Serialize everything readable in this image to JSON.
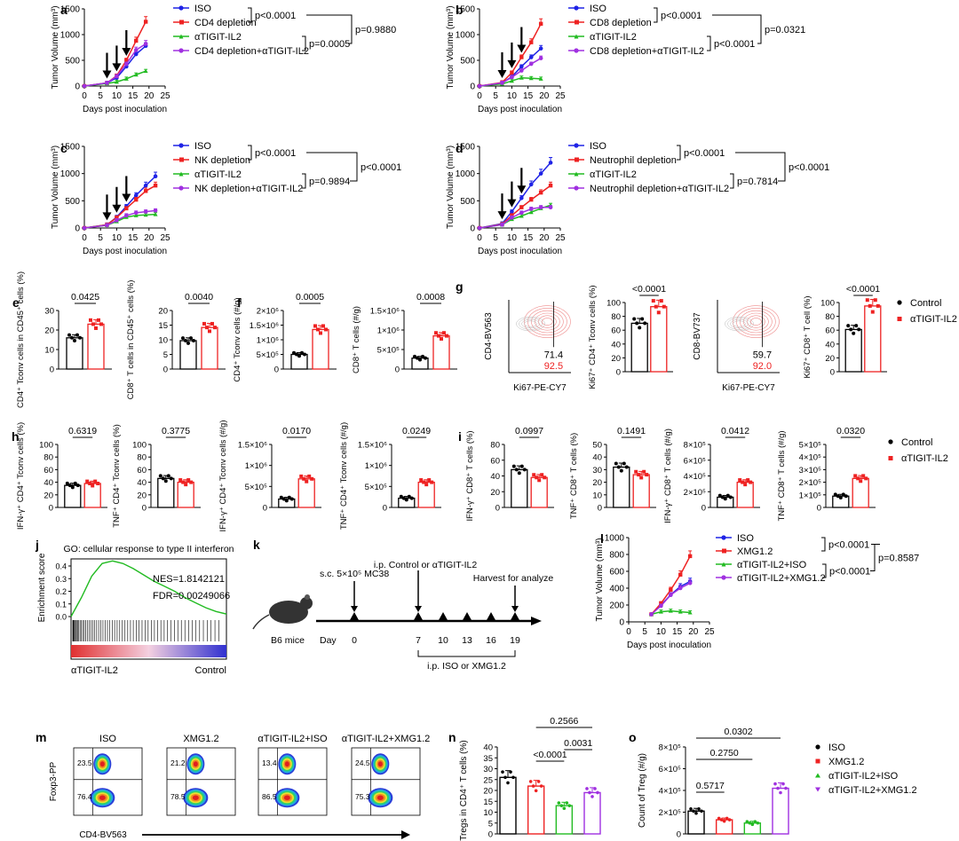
{
  "colors": {
    "ISO": "#1f23e6",
    "red": "#ee2222",
    "green": "#22bb22",
    "purple": "#a030e0",
    "black": "#000000"
  },
  "chart_data": {
    "a": {
      "label": "a",
      "type": "line",
      "ylabel": "Tumor Volume (mm³)",
      "xlabel": "Days post inoculation",
      "x": [
        0,
        7,
        10,
        13,
        16,
        19
      ],
      "xlim": [
        0,
        25
      ],
      "ylim": [
        0,
        1500
      ],
      "yticks": [
        "0",
        "500",
        "1000",
        "1500"
      ],
      "xticks": [
        "0",
        "5",
        "10",
        "15",
        "20",
        "25"
      ],
      "arrow_days": [
        7,
        10,
        13
      ],
      "series": [
        {
          "name": "ISO",
          "values": [
            0,
            60,
            160,
            380,
            620,
            780
          ]
        },
        {
          "name": "CD4 depletion",
          "values": [
            0,
            60,
            200,
            500,
            880,
            1250
          ]
        },
        {
          "name": "αTIGIT-IL2",
          "values": [
            0,
            50,
            80,
            140,
            220,
            290
          ]
        },
        {
          "name": "CD4 depletion+αTIGIT-IL2",
          "values": [
            0,
            60,
            190,
            430,
            700,
            820
          ]
        }
      ],
      "pvals": [
        "p<0.0001",
        "p=0.0005",
        "p=0.9880"
      ]
    },
    "b": {
      "label": "b",
      "type": "line",
      "ylabel": "Tumor Volume (mm³)",
      "xlabel": "Days post inoculation",
      "x": [
        0,
        7,
        10,
        13,
        16,
        19
      ],
      "xlim": [
        0,
        25
      ],
      "ylim": [
        0,
        1500
      ],
      "yticks": [
        "0",
        "500",
        "1000",
        "1500"
      ],
      "xticks": [
        "0",
        "5",
        "10",
        "15",
        "20",
        "25"
      ],
      "arrow_days": [
        7,
        10,
        13
      ],
      "series": [
        {
          "name": "ISO",
          "values": [
            0,
            60,
            180,
            380,
            560,
            730
          ]
        },
        {
          "name": "CD8 depletion",
          "values": [
            0,
            70,
            260,
            560,
            850,
            1210
          ]
        },
        {
          "name": "αTIGIT-IL2",
          "values": [
            0,
            40,
            100,
            160,
            150,
            140
          ]
        },
        {
          "name": "CD8 depletion+αTIGIT-IL2",
          "values": [
            0,
            60,
            170,
            300,
            430,
            540
          ]
        }
      ],
      "pvals": [
        "p<0.0001",
        "p<0.0001",
        "p=0.0321"
      ]
    },
    "c": {
      "label": "c",
      "type": "line",
      "ylabel": "Tumor Volume (mm³)",
      "xlabel": "Days post inoculation",
      "x": [
        0,
        7,
        10,
        13,
        16,
        19,
        22
      ],
      "xlim": [
        0,
        25
      ],
      "ylim": [
        0,
        1500
      ],
      "yticks": [
        "0",
        "500",
        "1000",
        "1500"
      ],
      "xticks": [
        "0",
        "5",
        "10",
        "15",
        "20",
        "25"
      ],
      "arrow_days": [
        7,
        10,
        13
      ],
      "series": [
        {
          "name": "ISO",
          "values": [
            0,
            60,
            200,
            400,
            600,
            780,
            950
          ]
        },
        {
          "name": "NK depletion",
          "values": [
            0,
            60,
            190,
            360,
            520,
            680,
            780
          ]
        },
        {
          "name": "αTIGIT-IL2",
          "values": [
            0,
            50,
            120,
            200,
            230,
            240,
            250
          ]
        },
        {
          "name": "NK depletion+αTIGIT-IL2",
          "values": [
            0,
            50,
            140,
            230,
            280,
            300,
            320
          ]
        }
      ],
      "pvals": [
        "p<0.0001",
        "p=0.9894",
        "p<0.0001"
      ]
    },
    "d": {
      "label": "d",
      "type": "line",
      "ylabel": "Tumor Volume (mm³)",
      "xlabel": "Days post inoculation",
      "x": [
        0,
        7,
        10,
        13,
        16,
        19,
        22
      ],
      "xlim": [
        0,
        25
      ],
      "ylim": [
        0,
        1500
      ],
      "yticks": [
        "0",
        "500",
        "1000",
        "1500"
      ],
      "xticks": [
        "0",
        "5",
        "10",
        "15",
        "20",
        "25"
      ],
      "arrow_days": [
        7,
        10,
        13
      ],
      "series": [
        {
          "name": "ISO",
          "values": [
            0,
            80,
            300,
            550,
            800,
            1000,
            1200
          ]
        },
        {
          "name": "Neutrophil depletion",
          "values": [
            0,
            70,
            230,
            380,
            520,
            650,
            780
          ]
        },
        {
          "name": "αTIGIT-IL2",
          "values": [
            0,
            60,
            160,
            220,
            290,
            360,
            420
          ]
        },
        {
          "name": "Neutrophil depletion+αTIGIT-IL2",
          "values": [
            0,
            60,
            190,
            280,
            350,
            380,
            380
          ]
        }
      ],
      "pvals": [
        "p<0.0001",
        "p=0.7814",
        "p<0.0001"
      ]
    },
    "l": {
      "label": "l",
      "type": "line",
      "ylabel": "Tumor Volume (mm³)",
      "xlabel": "Days post inoculation",
      "x": [
        7,
        10,
        13,
        16,
        19
      ],
      "xlim": [
        0,
        25
      ],
      "ylim": [
        0,
        1000
      ],
      "yticks": [
        "0",
        "200",
        "400",
        "600",
        "800",
        "1000"
      ],
      "xticks": [
        "0",
        "5",
        "10",
        "15",
        "20",
        "25"
      ],
      "series": [
        {
          "name": "ISO",
          "values": [
            90,
            200,
            320,
            420,
            480
          ]
        },
        {
          "name": "XMG1.2",
          "values": [
            90,
            220,
            380,
            560,
            780
          ]
        },
        {
          "name": "αTIGIT-IL2+ISO",
          "values": [
            90,
            120,
            130,
            120,
            110
          ]
        },
        {
          "name": "αTIGIT-IL2+XMG1.2",
          "values": [
            90,
            190,
            320,
            400,
            460
          ]
        }
      ],
      "pvals": [
        "p<0.0001",
        "p<0.0001",
        "p=0.8587"
      ]
    },
    "bars": [
      {
        "label": "e",
        "ylabel": "CD4⁺ Tconv cells in CD45⁺ cells (%)",
        "ymax": 30,
        "yticks": [
          "0",
          "10",
          "20",
          "30"
        ],
        "values": [
          16,
          23
        ],
        "p": "0.0425"
      },
      {
        "label": "",
        "ylabel": "CD8⁺ T cells in CD45⁺ cells (%)",
        "ymax": 20,
        "yticks": [
          "0",
          "5",
          "10",
          "15",
          "20"
        ],
        "values": [
          9.7,
          14.2
        ],
        "p": "0.0040"
      },
      {
        "label": "f",
        "ylabel": "CD4⁺ Tconv cells (#/g)",
        "ymax": 2000000,
        "yticks": [
          "0",
          "5×10⁵",
          "1×10⁶",
          "1.5×10⁶",
          "2×10⁶"
        ],
        "values": [
          500000,
          1350000
        ],
        "p": "0.0005"
      },
      {
        "label": "",
        "ylabel": "CD8⁺ T cells (#/g)",
        "ymax": 1500000,
        "yticks": [
          "0",
          "5×10⁵",
          "1×10⁶",
          "1.5×10⁶"
        ],
        "values": [
          280000,
          850000
        ],
        "p": "0.0008"
      },
      {
        "label": "",
        "ylabel": "Ki67⁺ CD4⁺ Tconv cells (%)",
        "ymax": 100,
        "yticks": [
          "0",
          "20",
          "40",
          "60",
          "80",
          "100"
        ],
        "values": [
          70,
          94
        ],
        "p": "<0.0001"
      },
      {
        "label": "",
        "ylabel": "Ki67⁺ CD8⁺ T cell (%)",
        "ymax": 100,
        "yticks": [
          "0",
          "20",
          "40",
          "60",
          "80",
          "100"
        ],
        "values": [
          61,
          95
        ],
        "p": "<0.0001"
      },
      {
        "label": "h",
        "ylabel": "IFN-γ⁺ CD4⁺ Tconv cells (%)",
        "ymax": 100,
        "yticks": [
          "0",
          "20",
          "40",
          "60",
          "80",
          "100"
        ],
        "values": [
          35,
          38
        ],
        "p": "0.6319"
      },
      {
        "label": "",
        "ylabel": "TNF⁺ CD4⁺ Tconv cells (%)",
        "ymax": 100,
        "yticks": [
          "0",
          "20",
          "40",
          "60",
          "80",
          "100"
        ],
        "values": [
          46,
          40
        ],
        "p": "0.3775"
      },
      {
        "label": "",
        "ylabel": "IFN-γ⁺ CD4⁺ Tconv cells (#/g)",
        "ymax": 1500000,
        "yticks": [
          "0",
          "5×10⁵",
          "1×10⁶",
          "1.5×10⁶"
        ],
        "values": [
          200000,
          680000
        ],
        "p": "0.0170"
      },
      {
        "label": "",
        "ylabel": "TNF⁺ CD4⁺ Tconv cells (#/g)",
        "ymax": 1500000,
        "yticks": [
          "0",
          "5×10⁵",
          "1×10⁶",
          "1.5×10⁶"
        ],
        "values": [
          220000,
          600000
        ],
        "p": "0.0249"
      },
      {
        "label": "i",
        "ylabel": "IFN-γ⁺ CD8⁺ T cells (%)",
        "ymax": 80,
        "yticks": [
          "0",
          "20",
          "40",
          "60",
          "80"
        ],
        "values": [
          48,
          38
        ],
        "p": "0.0997"
      },
      {
        "label": "",
        "ylabel": "TNF⁺ CD8⁺ T cells (%)",
        "ymax": 50,
        "yticks": [
          "0",
          "10",
          "20",
          "30",
          "40",
          "50"
        ],
        "values": [
          32,
          26
        ],
        "p": "0.1491"
      },
      {
        "label": "",
        "ylabel": "IFN-γ⁺ CD8⁺ T cells (#/g)",
        "ymax": 800000,
        "yticks": [
          "0",
          "2×10⁵",
          "4×10⁵",
          "6×10⁵",
          "8×10⁵"
        ],
        "values": [
          130000,
          320000
        ],
        "p": "0.0412"
      },
      {
        "label": "",
        "ylabel": "TNF⁺ CD8⁺ T cells (#/g)",
        "ymax": 500000,
        "yticks": [
          "0",
          "1×10⁵",
          "2×10⁵",
          "3×10⁵",
          "4×10⁵",
          "5×10⁵"
        ],
        "values": [
          90000,
          230000
        ],
        "p": "0.0320"
      }
    ],
    "bar_legend": [
      "Control",
      "αTIGIT-IL2"
    ],
    "flow_g": [
      {
        "ylabel": "CD4-BV563",
        "xlabel": "Ki67-PE-CY7",
        "v1": "71.4",
        "v2": "92.5"
      },
      {
        "ylabel": "CD8-BV737",
        "xlabel": "Ki67-PE-CY7",
        "v1": "59.7",
        "v2": "92.0"
      }
    ],
    "j": {
      "label": "j",
      "title": "GO: cellular response to type II interferon",
      "ylabel": "Enrichment score",
      "nes": "NES=1.8142121",
      "fdr": "FDR=0.00249066",
      "left": "αTIGIT-IL2",
      "right": "Control",
      "yticks": [
        "0.0",
        "0.1",
        "0.2",
        "0.3",
        "0.4"
      ]
    },
    "k": {
      "label": "k",
      "mouse": "B6 mice",
      "sc": "s.c. 5×10⁵ MC38",
      "ip1": "i.p. Control or αTIGIT-IL2",
      "harvest": "Harvest for analyze",
      "ip2": "i.p. ISO or XMG1.2",
      "day_label": "Day",
      "days": [
        "0",
        "7",
        "10",
        "13",
        "16",
        "19"
      ]
    },
    "m": {
      "label": "m",
      "groups": [
        "ISO",
        "XMG1.2",
        "αTIGIT-IL2+ISO",
        "αTIGIT-IL2+XMG1.2"
      ],
      "top": [
        "23.5",
        "21.2",
        "13.4",
        "24.5"
      ],
      "bottom": [
        "76.4",
        "78.5",
        "86.5",
        "75.3"
      ],
      "ylabel": "Foxp3-PP",
      "xlabel": "CD4-BV563"
    },
    "n": {
      "label": "n",
      "ylabel": "Tregs in CD4⁺ T cells (%)",
      "ymax": 40,
      "yticks": [
        "0",
        "5",
        "10",
        "15",
        "20",
        "25",
        "30",
        "35",
        "40"
      ],
      "values": [
        26,
        22,
        13,
        19
      ],
      "pvals": [
        "<0.0001",
        "0.0031",
        "0.2566"
      ]
    },
    "o": {
      "label": "o",
      "ylabel": "Count of Treg (#/g)",
      "ymax": 800000,
      "yticks": [
        "0",
        "2×10⁵",
        "4×10⁵",
        "6×10⁵",
        "8×10⁵"
      ],
      "values": [
        210000,
        130000,
        100000,
        420000
      ],
      "pvals": [
        "0.5717",
        "0.2750",
        "0.0302"
      ]
    },
    "legend4": [
      "ISO",
      "XMG1.2",
      "αTIGIT-IL2+ISO",
      "αTIGIT-IL2+XMG1.2"
    ]
  }
}
